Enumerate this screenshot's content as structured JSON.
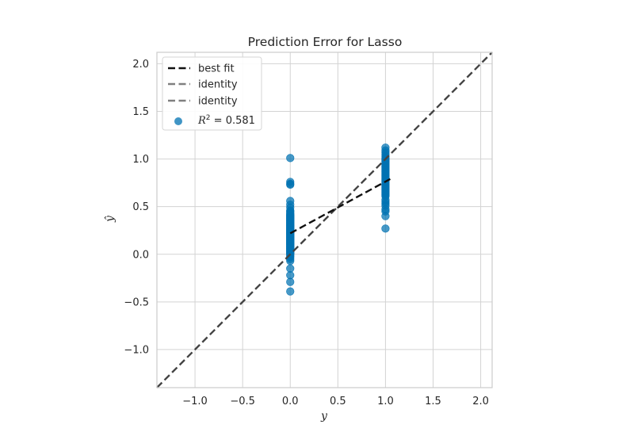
{
  "chart_data": {
    "type": "scatter",
    "title": "Prediction Error for Lasso",
    "xlabel": "y",
    "ylabel": "ŷ",
    "xlim": [
      -1.4,
      2.12
    ],
    "ylim": [
      -1.4,
      2.12
    ],
    "xticks": [
      -1.0,
      -0.5,
      0.0,
      0.5,
      1.0,
      1.5,
      2.0
    ],
    "yticks": [
      -1.0,
      -0.5,
      0.0,
      0.5,
      1.0,
      1.5,
      2.0
    ],
    "xtick_labels": [
      "−1.0",
      "−0.5",
      "0.0",
      "0.5",
      "1.0",
      "1.5",
      "2.0"
    ],
    "ytick_labels": [
      "−1.0",
      "−0.5",
      "0.0",
      "0.5",
      "1.0",
      "1.5",
      "2.0"
    ],
    "grid": true,
    "legend_position": "top-left",
    "legend": [
      {
        "label": "best fit",
        "style": "dashed",
        "color": "#111111"
      },
      {
        "label": "identity",
        "style": "dashed",
        "color": "#808080"
      },
      {
        "label": "identity",
        "style": "dashed",
        "color": "#808080"
      },
      {
        "label_prefix": "R",
        "label_sup": "2",
        "label_suffix": " = 0.581",
        "style": "marker",
        "color": "#1f77b4"
      }
    ],
    "r2": 0.581,
    "colors": {
      "points": "#0072b2",
      "best_fit": "#111111",
      "identity": "#444444",
      "grid": "#d3d3d3",
      "spine": "#cccccc"
    },
    "best_fit": {
      "x": [
        0.0,
        1.05
      ],
      "y": [
        0.22,
        0.79
      ]
    },
    "identity": {
      "x": [
        -1.4,
        2.12
      ],
      "y": [
        -1.4,
        2.12
      ]
    },
    "series": [
      {
        "x": [
          0,
          0,
          0,
          0,
          0,
          0,
          0,
          0,
          0,
          0,
          0,
          0,
          0,
          0,
          0,
          0,
          0,
          0,
          0,
          0,
          0,
          0,
          0,
          0,
          0,
          0,
          0,
          0,
          0,
          0,
          0,
          0,
          0,
          0,
          0,
          0,
          0,
          0,
          0,
          0,
          0,
          0,
          0,
          0,
          0,
          0,
          0,
          0,
          0,
          0,
          0,
          0,
          0,
          0,
          0,
          0,
          0,
          0,
          0,
          0,
          0,
          0,
          0,
          0,
          0,
          0,
          0,
          0,
          0,
          0,
          0,
          0,
          0,
          0,
          0,
          0,
          0,
          0,
          0,
          0,
          0,
          0,
          0,
          0,
          0,
          0,
          0,
          0,
          0,
          0,
          0,
          0,
          0,
          0,
          0,
          0,
          0,
          0,
          0,
          0,
          0,
          0,
          0,
          0,
          0,
          0,
          0,
          0,
          0,
          0,
          0,
          0,
          0,
          0,
          0,
          0,
          0,
          0,
          1,
          1,
          1,
          1,
          1,
          1,
          1,
          1,
          1,
          1,
          1,
          1,
          1,
          1,
          1,
          1,
          1,
          1,
          1,
          1,
          1,
          1,
          1,
          1,
          1,
          1,
          1,
          1,
          1,
          1,
          1,
          1,
          1,
          1,
          1,
          1,
          1,
          1,
          1,
          1,
          1,
          1,
          1,
          1,
          1,
          1,
          1,
          1,
          1,
          1,
          1,
          1,
          1,
          1
        ],
        "y": [
          1.01,
          0.76,
          0.74,
          0.73,
          0.56,
          0.52,
          0.49,
          0.46,
          0.45,
          0.44,
          0.43,
          0.42,
          0.41,
          0.4,
          0.39,
          0.38,
          0.37,
          0.36,
          0.35,
          0.34,
          0.33,
          0.32,
          0.31,
          0.3,
          0.29,
          0.28,
          0.27,
          0.26,
          0.25,
          0.24,
          0.23,
          0.22,
          0.21,
          0.2,
          0.19,
          0.18,
          0.17,
          0.16,
          0.15,
          0.14,
          0.13,
          0.12,
          0.11,
          0.1,
          0.09,
          0.08,
          0.07,
          0.06,
          0.05,
          0.04,
          0.03,
          0.02,
          0.01,
          0.0,
          -0.01,
          -0.02,
          -0.03,
          -0.05,
          -0.07,
          -0.15,
          -0.22,
          -0.29,
          -0.39,
          0.415,
          0.405,
          0.395,
          0.385,
          0.375,
          0.365,
          0.355,
          0.345,
          0.335,
          0.325,
          0.315,
          0.305,
          0.295,
          0.285,
          0.275,
          0.265,
          0.255,
          0.245,
          0.235,
          0.225,
          0.215,
          0.205,
          0.195,
          0.185,
          0.175,
          0.165,
          0.155,
          0.145,
          0.135,
          0.125,
          0.115,
          0.105,
          0.095,
          0.085,
          0.075,
          0.065,
          0.055,
          0.045,
          0.035,
          0.025,
          0.015,
          0.005,
          0.3,
          0.28,
          0.26,
          0.24,
          0.22,
          0.2,
          0.18,
          0.16,
          0.14,
          0.12,
          0.1,
          0.08,
          0.06,
          1.12,
          1.09,
          1.07,
          1.05,
          1.03,
          1.01,
          0.99,
          0.97,
          0.95,
          0.93,
          0.91,
          0.89,
          0.87,
          0.85,
          0.83,
          0.81,
          0.79,
          0.77,
          0.75,
          0.73,
          0.71,
          0.69,
          0.67,
          0.65,
          0.63,
          0.61,
          0.57,
          0.55,
          0.53,
          0.51,
          0.47,
          0.45,
          0.4,
          0.27,
          1.0,
          0.98,
          0.96,
          0.94,
          0.92,
          0.9,
          0.88,
          0.86,
          0.84,
          0.82,
          0.8,
          0.78,
          0.76,
          0.74,
          0.72,
          0.7,
          0.68,
          0.66,
          0.64,
          0.62
        ]
      }
    ]
  }
}
